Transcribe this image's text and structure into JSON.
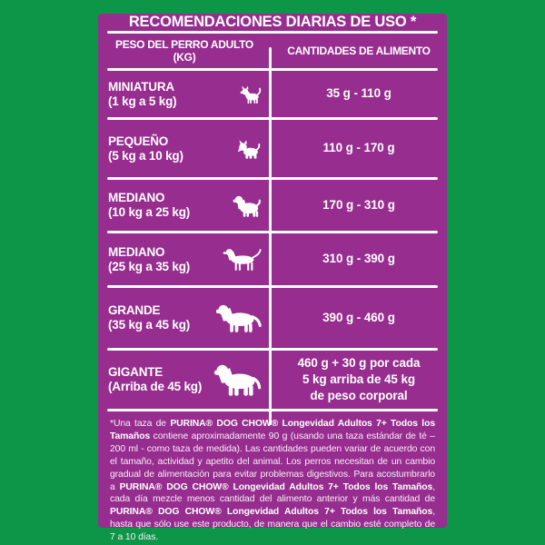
{
  "colors": {
    "background_green": "#0d9648",
    "panel_purple": "#962d8f",
    "text_white": "#ffffff"
  },
  "title": "RECOMENDACIONES DIARIAS DE USO *",
  "table": {
    "col1_header": "PESO DEL PERRO ADULTO (KG)",
    "col2_header": "CANTIDADES DE ALIMENTO",
    "rows": [
      {
        "size": "MINIATURA",
        "range": "(1 kg a 5 kg)",
        "icon": "chihuahua-dog-icon",
        "amount": "35 g - 110 g"
      },
      {
        "size": "PEQUEÑO",
        "range": "(5 kg a 10 kg)",
        "icon": "terrier-dog-icon",
        "amount": "110 g - 170 g"
      },
      {
        "size": "MEDIANO",
        "range": "(10 kg a 25 kg)",
        "icon": "cocker-dog-icon",
        "amount": "170 g - 310 g"
      },
      {
        "size": "MEDIANO",
        "range": "(25 kg a 35 kg)",
        "icon": "pointer-dog-icon",
        "amount": "310 g - 390 g"
      },
      {
        "size": "GRANDE",
        "range": "(35 kg a 45 kg)",
        "icon": "labrador-dog-icon",
        "amount": "390 g - 460 g"
      },
      {
        "size": "GIGANTE",
        "range": "(Arriba de 45 kg)",
        "icon": "mastiff-dog-icon",
        "amount": "460 g + 30 g por cada\n5 kg arriba de 45 kg\nde peso corporal"
      }
    ]
  },
  "footnote": {
    "segments": [
      {
        "t": "*Una taza de ",
        "b": false
      },
      {
        "t": "PURINA® DOG CHOW® Longevidad Adultos 7+ Todos los Tamaños",
        "b": true
      },
      {
        "t": " contiene aproximadamente 90 g (usando una taza estándar de té – 200 ml - como taza de medida). Las cantidades pueden variar de acuerdo con el tamaño, actividad y apetito del animal. Los perros necesitan de un cambio gradual de alimentación para evitar problemas digestivos. Para acostumbrarlo a ",
        "b": false
      },
      {
        "t": "PURINA® DOG CHOW® Longevidad Adultos 7+ Todos los Tamaños",
        "b": true
      },
      {
        "t": ", cada día mezcle menos cantidad del alimento anterior y más cantidad de ",
        "b": false
      },
      {
        "t": "PURINA® DOG CHOW® Longevidad Adultos 7+ Todos los Tamaños",
        "b": true
      },
      {
        "t": ", hasta que sólo use este producto, de manera que el cambio esté completo de 7 a 10 días.",
        "b": false
      }
    ]
  }
}
